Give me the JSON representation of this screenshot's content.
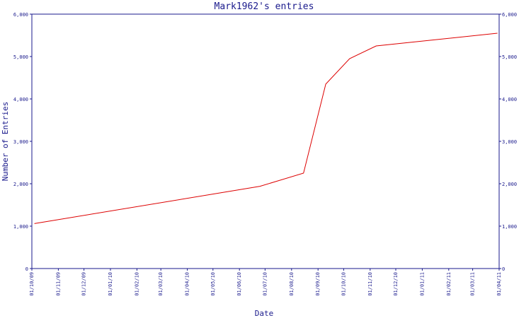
{
  "chart_data": {
    "type": "line",
    "title": "Mark1962's entries",
    "xlabel": "Date",
    "ylabel": "Number of Entries",
    "x_ticks": [
      "01/10/09",
      "01/11/09",
      "01/12/09",
      "01/01/10",
      "01/02/10",
      "01/03/10",
      "01/04/10",
      "01/05/10",
      "01/06/10",
      "01/07/10",
      "01/08/10",
      "01/09/10",
      "01/10/10",
      "01/11/10",
      "01/12/10",
      "01/01/11",
      "01/02/11",
      "01/03/11",
      "01/04/11"
    ],
    "y_ticks": [
      "0",
      "1,000",
      "2,000",
      "3,000",
      "4,000",
      "5,000",
      "6,000"
    ],
    "ylim": [
      0,
      6000
    ],
    "grid": false,
    "series": [
      {
        "color": "#dd0000",
        "points": [
          {
            "x": "2009-10-04",
            "y": 1060
          },
          {
            "x": "2010-06-25",
            "y": 1940
          },
          {
            "x": "2010-08-15",
            "y": 2250
          },
          {
            "x": "2010-09-10",
            "y": 4350
          },
          {
            "x": "2010-10-08",
            "y": 4950
          },
          {
            "x": "2010-11-08",
            "y": 5250
          },
          {
            "x": "2011-03-30",
            "y": 5550
          }
        ]
      }
    ],
    "colors": {
      "axis": "#1a1a8c",
      "line": "#dd0000"
    }
  }
}
